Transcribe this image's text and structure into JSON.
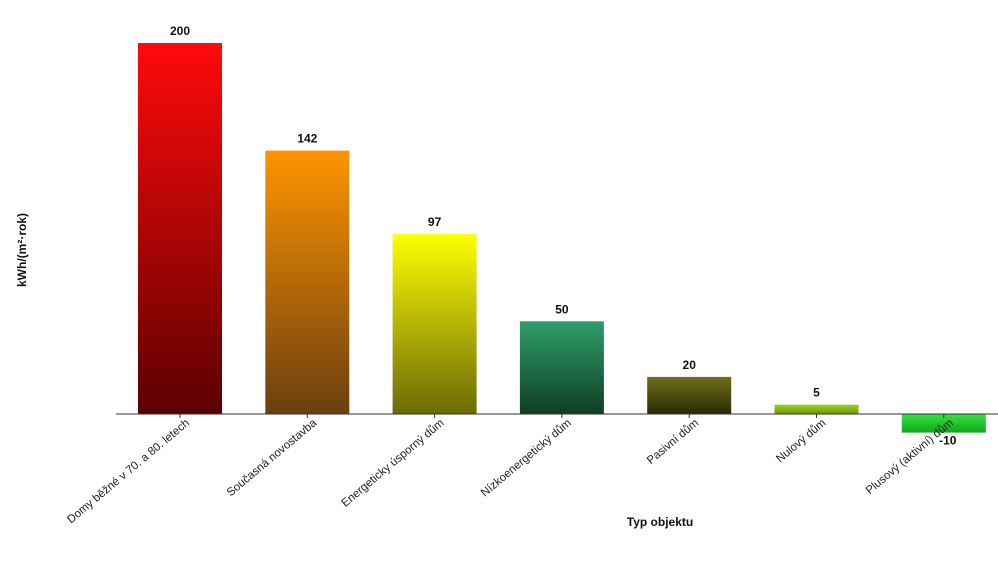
{
  "chart_data": {
    "type": "bar",
    "categories": [
      "Domy běžné v 70. a 80. letech",
      "Současná novostavba",
      "Energeticky úsporný dům",
      "Nízkoenergetický dům",
      "Pasivní dům",
      "Nulový dům",
      "Plusový (aktivní) dům"
    ],
    "values": [
      200,
      142,
      97,
      50,
      20,
      5,
      -10
    ],
    "value_labels": [
      "200",
      "142",
      "97",
      "50",
      "20",
      "5",
      "-10"
    ],
    "colors": [
      [
        "#ff0a0a",
        "#5c0000"
      ],
      [
        "#ff9400",
        "#6b3f10"
      ],
      [
        "#ffff05",
        "#6b6b06"
      ],
      [
        "#2f9e6a",
        "#0f3d24"
      ],
      [
        "#6f6f1a",
        "#2a2a06"
      ],
      [
        "#9ad21c",
        "#6d9a10"
      ],
      [
        "#33e33e",
        "#12a51d"
      ]
    ],
    "xlabel": "Typ objektu",
    "ylabel": "kWh/(m²·rok)",
    "ylim": [
      -10,
      200
    ],
    "grid": false,
    "legend": "none"
  }
}
